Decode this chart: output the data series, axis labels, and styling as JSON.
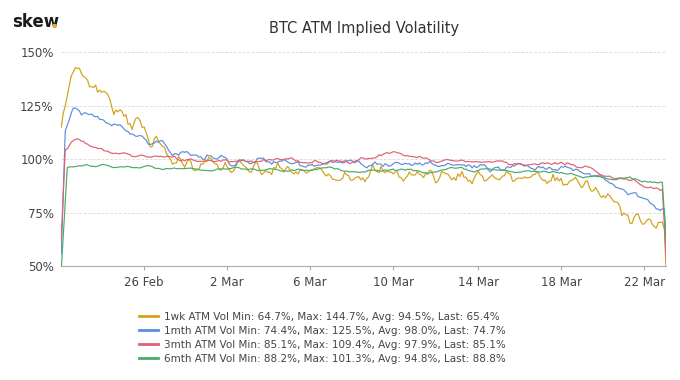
{
  "title": "BTC ATM Implied Volatility",
  "background_color": "#ffffff",
  "grid_color": "#d0d0d0",
  "series": [
    {
      "label": "1wk ATM Vol",
      "color": "#d4a017",
      "min": 64.7,
      "max": 144.7,
      "avg": 94.5,
      "last": 65.4
    },
    {
      "label": "1mth ATM Vol",
      "color": "#5b8dd9",
      "min": 74.4,
      "max": 125.5,
      "avg": 98.0,
      "last": 74.7
    },
    {
      "label": "3mth ATM Vol",
      "color": "#e06070",
      "min": 85.1,
      "max": 109.4,
      "avg": 97.9,
      "last": 85.1
    },
    {
      "label": "6mth ATM Vol",
      "color": "#4aaa6a",
      "min": 88.2,
      "max": 101.3,
      "avg": 94.8,
      "last": 88.8
    }
  ],
  "ylim": [
    50,
    155
  ],
  "yticks": [
    50,
    75,
    100,
    125,
    150
  ],
  "x_labels": [
    "26 Feb",
    "2 Mar",
    "6 Mar",
    "10 Mar",
    "14 Mar",
    "18 Mar",
    "22 Mar"
  ],
  "legend_labels_bold": [
    "1wk ATM Vol",
    "1mth ATM Vol",
    "3mth ATM Vol",
    "6mth ATM Vol"
  ],
  "legend_labels_stats": [
    " Min: 64.7%, Max: 144.7%, Avg: 94.5%, Last: 65.4%",
    " Min: 74.4%, Max: 125.5%, Avg: 98.0%, Last: 74.7%",
    " Min: 85.1%, Max: 109.4%, Avg: 97.9%, Last: 85.1%",
    " Min: 88.2%, Max: 101.3%, Avg: 94.8%, Last: 88.8%"
  ],
  "n_points": 300
}
